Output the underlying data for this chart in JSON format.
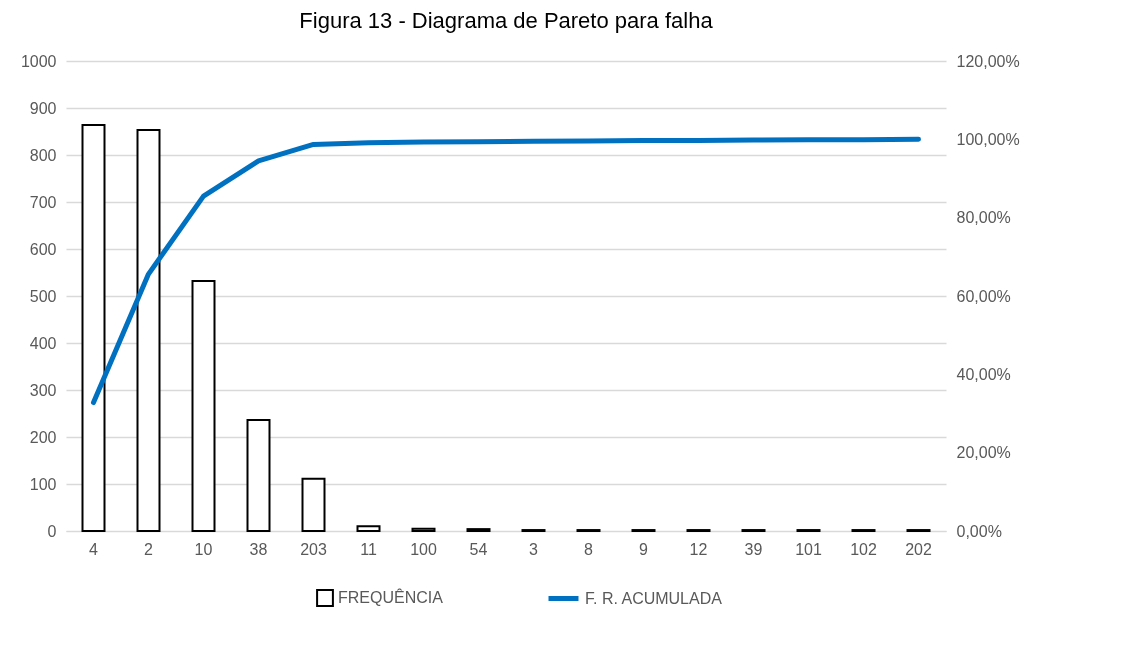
{
  "chart_data": {
    "type": "bar",
    "title": "Figura 13 - Diagrama de Pareto para falha",
    "categories": [
      "4",
      "2",
      "10",
      "38",
      "203",
      "11",
      "100",
      "54",
      "3",
      "8",
      "9",
      "12",
      "39",
      "101",
      "102",
      "202"
    ],
    "series": [
      {
        "name": "FREQUÊNCIA",
        "color": "#ffffff",
        "values": [
          864,
          853,
          532,
          236,
          111,
          10,
          5,
          4,
          2,
          2,
          2,
          2,
          2,
          2,
          2,
          2
        ]
      },
      {
        "name": "F. R. ACUMULADA",
        "type": "line",
        "axis": "y2",
        "color": "#0070c0",
        "values": [
          32.8,
          65.6,
          85.5,
          94.5,
          98.7,
          99.1,
          99.3,
          99.4,
          99.5,
          99.6,
          99.7,
          99.7,
          99.8,
          99.9,
          99.9,
          100
        ]
      }
    ],
    "ylim": [
      0,
      1000
    ],
    "yticks": [
      0,
      100,
      200,
      300,
      400,
      500,
      600,
      700,
      800,
      900,
      1000
    ],
    "y2lim": [
      0,
      120
    ],
    "y2ticks": [
      {
        "value": 0,
        "label": "0,00%"
      },
      {
        "value": 20,
        "label": "20,00%"
      },
      {
        "value": 40,
        "label": "40,00%"
      },
      {
        "value": 60,
        "label": "60,00%"
      },
      {
        "value": 80,
        "label": "80,00%"
      },
      {
        "value": 100,
        "label": "100,00%"
      },
      {
        "value": 120,
        "label": "120,00%"
      }
    ],
    "grid": "y",
    "legend": "bottom",
    "line_style": "solid"
  }
}
